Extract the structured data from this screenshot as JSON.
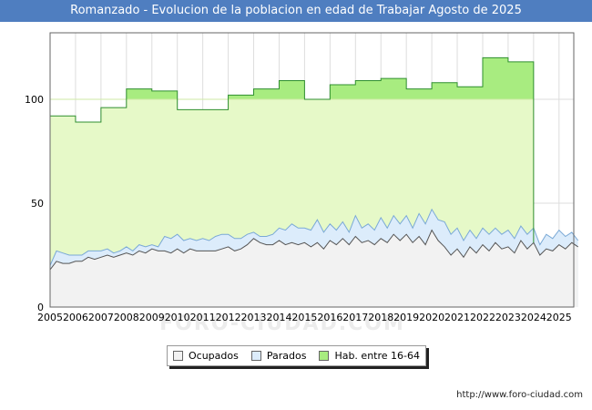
{
  "title": "Romanzado - Evolucion de la poblacion en edad de Trabajar Agosto de 2025",
  "footer_url": "http://www.foro-ciudad.com",
  "watermark": "FORO-CIUDAD.COM",
  "colors": {
    "title_bg": "#4f7ec0",
    "hab_fill": "#e6f9c8",
    "hab_line": "#2f8f2f",
    "hab_gain_fill": "#a8ec80",
    "parados_fill": "#dcecfb",
    "parados_line": "#7aa9d6",
    "ocupados_fill": "#f2f2f2",
    "ocupados_line": "#555555"
  },
  "legend": [
    {
      "label": "Ocupados",
      "color": "#f2f2f2"
    },
    {
      "label": "Parados",
      "color": "#dcecfb"
    },
    {
      "label": "Hab. entre 16-64",
      "color": "#a8ec80"
    }
  ],
  "chart_data": {
    "type": "area",
    "title": "Romanzado - Evolucion de la poblacion en edad de Trabajar Agosto de 2025",
    "xlabel": "",
    "ylabel": "",
    "xlim": [
      2005,
      2025.58
    ],
    "ylim": [
      0,
      132
    ],
    "yticks": [
      0,
      50,
      100
    ],
    "xticks": [
      "2005",
      "2006",
      "2007",
      "2008",
      "2009",
      "2010",
      "2011",
      "2012",
      "2013",
      "2014",
      "2015",
      "2016",
      "2017",
      "2018",
      "2019",
      "2020",
      "2021",
      "2022",
      "2023",
      "2024",
      "2025"
    ],
    "grid": true,
    "legend_position": "bottom",
    "hab_baseline": 100,
    "series": [
      {
        "name": "Hab. entre 16-64",
        "description": "annual value, held constant over each year",
        "years": [
          2005,
          2006,
          2007,
          2008,
          2009,
          2010,
          2011,
          2012,
          2013,
          2014,
          2015,
          2016,
          2017,
          2018,
          2019,
          2020,
          2021,
          2022,
          2023
        ],
        "values": [
          92,
          89,
          96,
          105,
          104,
          95,
          95,
          102,
          105,
          109,
          100,
          107,
          109,
          110,
          105,
          108,
          106,
          120,
          118
        ]
      },
      {
        "name": "Parados",
        "description": "approximate quarterly upper line (Ocupados + Parados)",
        "start": 2005,
        "step": 0.25,
        "values": [
          20,
          27,
          26,
          25,
          25,
          25,
          27,
          27,
          27,
          28,
          26,
          27,
          29,
          27,
          30,
          29,
          30,
          29,
          34,
          33,
          35,
          32,
          33,
          32,
          33,
          32,
          34,
          35,
          35,
          33,
          33,
          35,
          36,
          34,
          34,
          35,
          38,
          37,
          40,
          38,
          38,
          37,
          42,
          36,
          40,
          37,
          41,
          36,
          44,
          38,
          40,
          37,
          43,
          38,
          44,
          40,
          44,
          38,
          45,
          40,
          47,
          42,
          41,
          35,
          38,
          32,
          37,
          33,
          38,
          35,
          38,
          35,
          37,
          33,
          39,
          35,
          38,
          30,
          35,
          33,
          37,
          34,
          36,
          32
        ]
      },
      {
        "name": "Ocupados",
        "description": "approximate quarterly values",
        "start": 2005,
        "step": 0.25,
        "values": [
          18,
          22,
          21,
          21,
          22,
          22,
          24,
          23,
          24,
          25,
          24,
          25,
          26,
          25,
          27,
          26,
          28,
          27,
          27,
          26,
          28,
          26,
          28,
          27,
          27,
          27,
          27,
          28,
          29,
          27,
          28,
          30,
          33,
          31,
          30,
          30,
          32,
          30,
          31,
          30,
          31,
          29,
          31,
          28,
          32,
          30,
          33,
          30,
          34,
          31,
          32,
          30,
          33,
          31,
          35,
          32,
          35,
          31,
          34,
          30,
          37,
          32,
          29,
          25,
          28,
          24,
          29,
          26,
          30,
          27,
          31,
          28,
          29,
          26,
          32,
          28,
          31,
          25,
          28,
          27,
          30,
          28,
          31,
          29
        ]
      }
    ]
  }
}
